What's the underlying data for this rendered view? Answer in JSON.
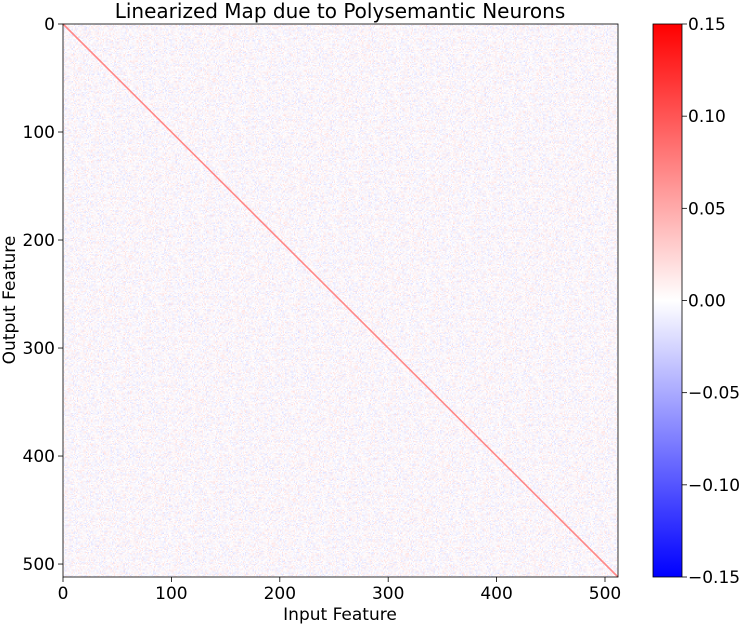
{
  "chart_data": {
    "type": "heatmap",
    "title": "Linearized Map due to Polysemantic Neurons",
    "xlabel": "Input Feature",
    "ylabel": "Output Feature",
    "matrix_size": [
      512,
      512
    ],
    "xlim": [
      0,
      512
    ],
    "ylim": [
      512,
      0
    ],
    "x_ticks": [
      0,
      100,
      200,
      300,
      400,
      500
    ],
    "y_ticks": [
      0,
      100,
      200,
      300,
      400,
      500
    ],
    "diagonal_value": 0.07,
    "off_diagonal_noise_amplitude": 0.02,
    "colorbar": {
      "colormap": "bwr",
      "vmin": -0.15,
      "vmax": 0.15,
      "ticks": [
        0.15,
        0.1,
        0.05,
        0.0,
        -0.05,
        -0.1,
        -0.15
      ],
      "tick_labels": [
        "0.15",
        "0.10",
        "0.05",
        "0.00",
        "−0.05",
        "−0.10",
        "−0.15"
      ],
      "colors": {
        "low": "#0000ff",
        "mid": "#ffffff",
        "high": "#ff0000"
      }
    }
  }
}
